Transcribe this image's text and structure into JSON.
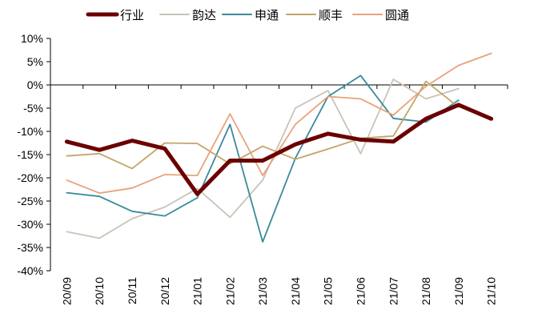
{
  "chart_data": {
    "type": "line",
    "title": "",
    "xlabel": "",
    "ylabel": "",
    "ylim": [
      -0.4,
      0.1
    ],
    "y_ticks": [
      0.1,
      0.05,
      0.0,
      -0.05,
      -0.1,
      -0.15,
      -0.2,
      -0.25,
      -0.3,
      -0.35,
      -0.4
    ],
    "y_tick_labels": [
      "10%",
      "5%",
      "0%",
      "-5%",
      "-10%",
      "-15%",
      "-20%",
      "-25%",
      "-30%",
      "-35%",
      "-40%"
    ],
    "categories": [
      "20/09",
      "20/10",
      "20/11",
      "20/12",
      "21/01",
      "21/02",
      "21/03",
      "21/04",
      "21/05",
      "21/06",
      "21/07",
      "21/08",
      "21/09",
      "21/10"
    ],
    "legend_position": "top",
    "series": [
      {
        "name": "行业",
        "color": "#6B0000",
        "width": "thick",
        "values": [
          -0.122,
          -0.14,
          -0.12,
          -0.137,
          -0.235,
          -0.163,
          -0.163,
          -0.128,
          -0.105,
          -0.118,
          -0.122,
          -0.073,
          -0.043,
          -0.073
        ]
      },
      {
        "name": "韵达",
        "color": "#C9C3B8",
        "width": "thin",
        "values": [
          -0.316,
          -0.33,
          -0.288,
          -0.263,
          -0.223,
          -0.285,
          -0.205,
          -0.05,
          -0.012,
          -0.148,
          0.012,
          -0.03,
          -0.008,
          null
        ]
      },
      {
        "name": "申通",
        "color": "#3A8A9A",
        "width": "thin",
        "values": [
          -0.232,
          -0.24,
          -0.272,
          -0.282,
          -0.243,
          -0.085,
          -0.338,
          -0.158,
          -0.025,
          0.02,
          -0.072,
          -0.08,
          -0.033,
          null
        ]
      },
      {
        "name": "顺丰",
        "color": "#C2A56A",
        "width": "thin",
        "values": [
          -0.153,
          -0.148,
          -0.18,
          -0.125,
          -0.126,
          -0.17,
          -0.132,
          -0.16,
          -0.138,
          -0.115,
          -0.11,
          0.008,
          -0.048,
          null
        ]
      },
      {
        "name": "圆通",
        "color": "#E8A27A",
        "width": "thin",
        "values": [
          -0.205,
          -0.233,
          -0.222,
          -0.193,
          -0.195,
          -0.062,
          -0.195,
          -0.085,
          -0.025,
          -0.03,
          -0.065,
          -0.003,
          0.042,
          0.068
        ]
      }
    ]
  }
}
